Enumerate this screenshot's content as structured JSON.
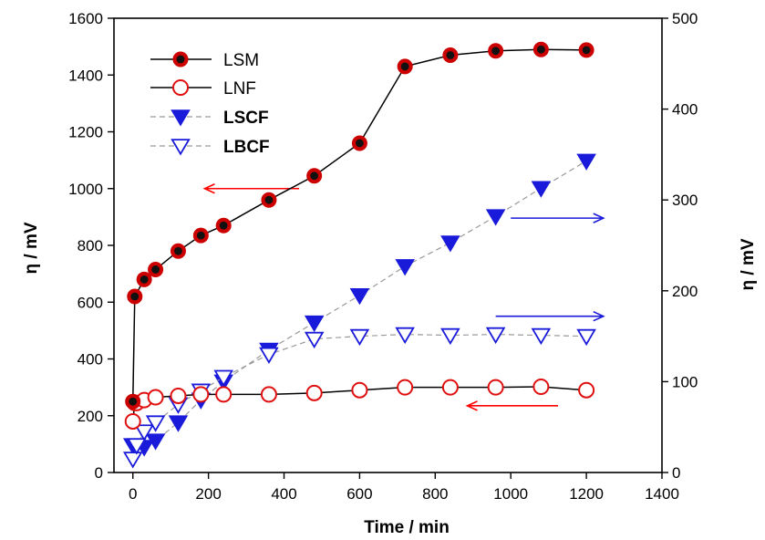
{
  "chart_data": {
    "type": "scatter",
    "title": "",
    "xlabel": "Time / min",
    "ylabel_left": "η / mV",
    "ylabel_right": "η / mV",
    "xlim": [
      -50,
      1400
    ],
    "ylim_left": [
      0,
      1600
    ],
    "ylim_right": [
      0,
      500
    ],
    "x_ticks": [
      "0",
      "200",
      "400",
      "600",
      "800",
      "1000",
      "1200",
      "1400"
    ],
    "y_left_ticks": [
      "0",
      "200",
      "400",
      "600",
      "800",
      "1000",
      "1200",
      "1400",
      "1600"
    ],
    "y_right_ticks": [
      "0",
      "100",
      "200",
      "300",
      "400",
      "500"
    ],
    "legend_position": "top-left",
    "grid": false,
    "series": [
      {
        "name": "LSM",
        "axis": "left",
        "marker": "filled-circle",
        "line": "solid",
        "line_color": "#000000",
        "marker_color": "#cc0000",
        "x": [
          0,
          5,
          30,
          60,
          120,
          180,
          240,
          360,
          480,
          600,
          720,
          840,
          960,
          1080,
          1200
        ],
        "y": [
          250,
          620,
          680,
          715,
          780,
          835,
          870,
          960,
          1045,
          1160,
          1430,
          1470,
          1485,
          1490,
          1488
        ]
      },
      {
        "name": "LNF",
        "axis": "left",
        "marker": "open-circle",
        "line": "solid",
        "line_color": "#000000",
        "marker_color": "#e01010",
        "x": [
          0,
          5,
          10,
          30,
          60,
          120,
          180,
          240,
          360,
          480,
          600,
          720,
          840,
          960,
          1080,
          1200
        ],
        "y": [
          180,
          245,
          245,
          255,
          265,
          270,
          275,
          275,
          275,
          280,
          290,
          300,
          300,
          300,
          302,
          290
        ]
      },
      {
        "name": "LSCF",
        "axis": "right",
        "marker": "filled-triangle-down",
        "line": "dashed",
        "line_color": "#999999",
        "marker_color": "#1a1adb",
        "x": [
          0,
          30,
          60,
          120,
          180,
          240,
          360,
          480,
          600,
          720,
          840,
          960,
          1080,
          1200
        ],
        "y": [
          30,
          28,
          35,
          55,
          80,
          100,
          135,
          165,
          195,
          227,
          253,
          282,
          313,
          343
        ]
      },
      {
        "name": "LBCF",
        "axis": "right",
        "marker": "open-triangle-down",
        "line": "dashed",
        "line_color": "#999999",
        "marker_color": "#1a1adb",
        "x": [
          0,
          10,
          30,
          60,
          120,
          180,
          240,
          360,
          480,
          600,
          720,
          840,
          960,
          1080,
          1200
        ],
        "y": [
          15,
          30,
          45,
          55,
          75,
          90,
          105,
          130,
          147,
          150,
          152,
          151,
          152,
          151,
          150
        ]
      }
    ],
    "annotations": [
      {
        "type": "arrow",
        "direction": "left",
        "color": "#ff0000",
        "x_from": 440,
        "x_to": 190,
        "y": 1000,
        "axis": "left"
      },
      {
        "type": "arrow",
        "direction": "right",
        "color": "#1a1adb",
        "x_from": 1000,
        "x_to": 1245,
        "y": 280,
        "axis": "right"
      },
      {
        "type": "arrow",
        "direction": "right",
        "color": "#1a1adb",
        "x_from": 960,
        "x_to": 1245,
        "y": 172,
        "axis": "right"
      },
      {
        "type": "arrow",
        "direction": "left",
        "color": "#ff0000",
        "x_from": 1125,
        "x_to": 885,
        "y": 235,
        "axis": "left"
      }
    ]
  }
}
